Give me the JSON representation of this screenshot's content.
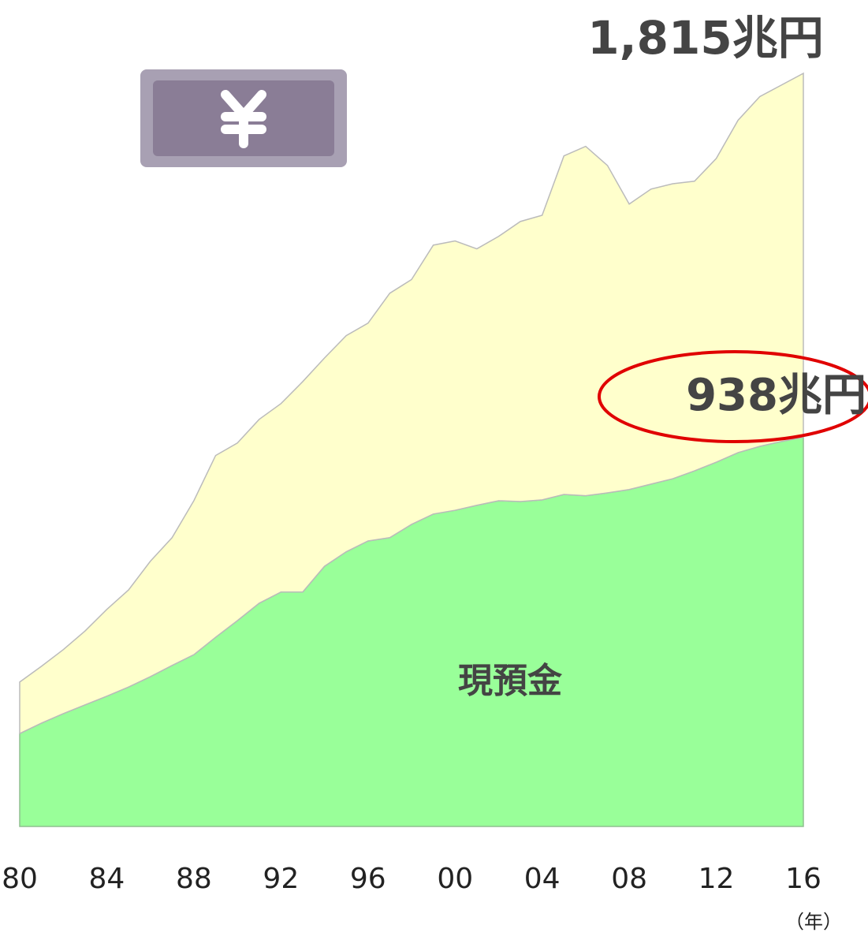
{
  "chart_data": {
    "type": "stacked_area",
    "x": [
      1980,
      1981,
      1982,
      1983,
      1984,
      1985,
      1986,
      1987,
      1988,
      1989,
      1990,
      1991,
      1992,
      1993,
      1994,
      1995,
      1996,
      1997,
      1998,
      1999,
      2000,
      2001,
      2002,
      2003,
      2004,
      2005,
      2006,
      2007,
      2008,
      2009,
      2010,
      2011,
      2012,
      2013,
      2014,
      2015,
      2016
    ],
    "series": [
      {
        "name": "現預金",
        "color": "#99ff99",
        "values": [
          224,
          249,
          272,
          293,
          314,
          336,
          361,
          388,
          414,
          456,
          496,
          538,
          565,
          565,
          627,
          662,
          688,
          696,
          728,
          753,
          762,
          774,
          785,
          783,
          787,
          800,
          797,
          804,
          812,
          825,
          838,
          857,
          878,
          901,
          916,
          928,
          938
        ]
      },
      {
        "color": "#ffffcc",
        "values": [
          124,
          137,
          154,
          178,
          209,
          234,
          278,
          308,
          371,
          438,
          428,
          443,
          454,
          507,
          502,
          521,
          525,
          589,
          590,
          648,
          649,
          618,
          637,
          675,
          686,
          816,
          842,
          789,
          688,
          711,
          711,
          698,
          732,
          801,
          843,
          859,
          877
        ]
      }
    ],
    "xlim": [
      1980,
      2016
    ],
    "xticks": [
      {
        "value": 1980,
        "label": "80"
      },
      {
        "value": 1984,
        "label": "84"
      },
      {
        "value": 1988,
        "label": "88"
      },
      {
        "value": 1992,
        "label": "92"
      },
      {
        "value": 1996,
        "label": "96"
      },
      {
        "value": 2000,
        "label": "00"
      },
      {
        "value": 2004,
        "label": "04"
      },
      {
        "value": 2008,
        "label": "08"
      },
      {
        "value": 2012,
        "label": "12"
      },
      {
        "value": 2016,
        "label": "16"
      }
    ],
    "x_label": "（年）",
    "annotations": [
      "1,815兆円",
      "938兆円"
    ]
  }
}
